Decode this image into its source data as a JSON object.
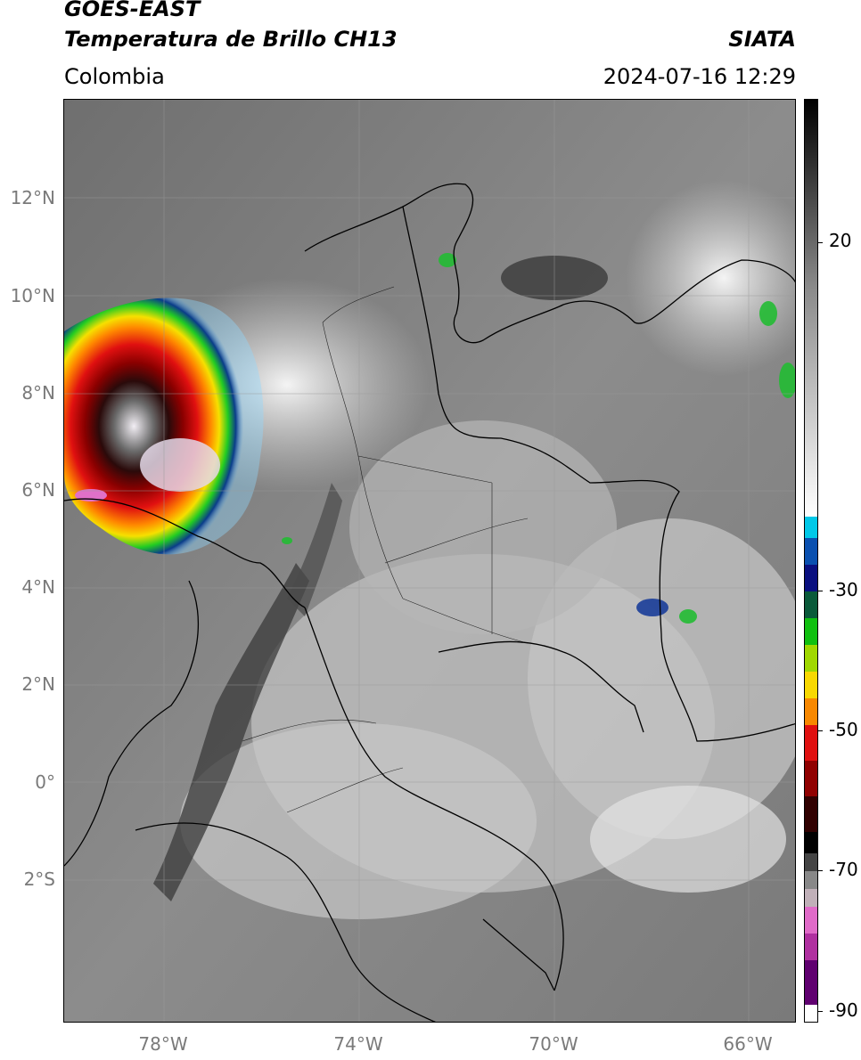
{
  "header": {
    "satellite": "GOES-EAST",
    "product": "Temperatura de Brillo CH13",
    "region": "Colombia",
    "agency": "SIATA",
    "datetime": "2024-07-16 12:29"
  },
  "map": {
    "lon_range": [
      -80,
      -65
    ],
    "lat_range": [
      -5,
      14
    ],
    "lat_labels": [
      "12°N",
      "10°N",
      "8°N",
      "6°N",
      "4°N",
      "2°N",
      "0°",
      "2°S"
    ],
    "lon_labels": [
      "78°W",
      "74°W",
      "70°W",
      "66°W"
    ]
  },
  "colorbar": {
    "labels": [
      "20",
      "-30",
      "-50",
      "-70",
      "-90"
    ]
  }
}
